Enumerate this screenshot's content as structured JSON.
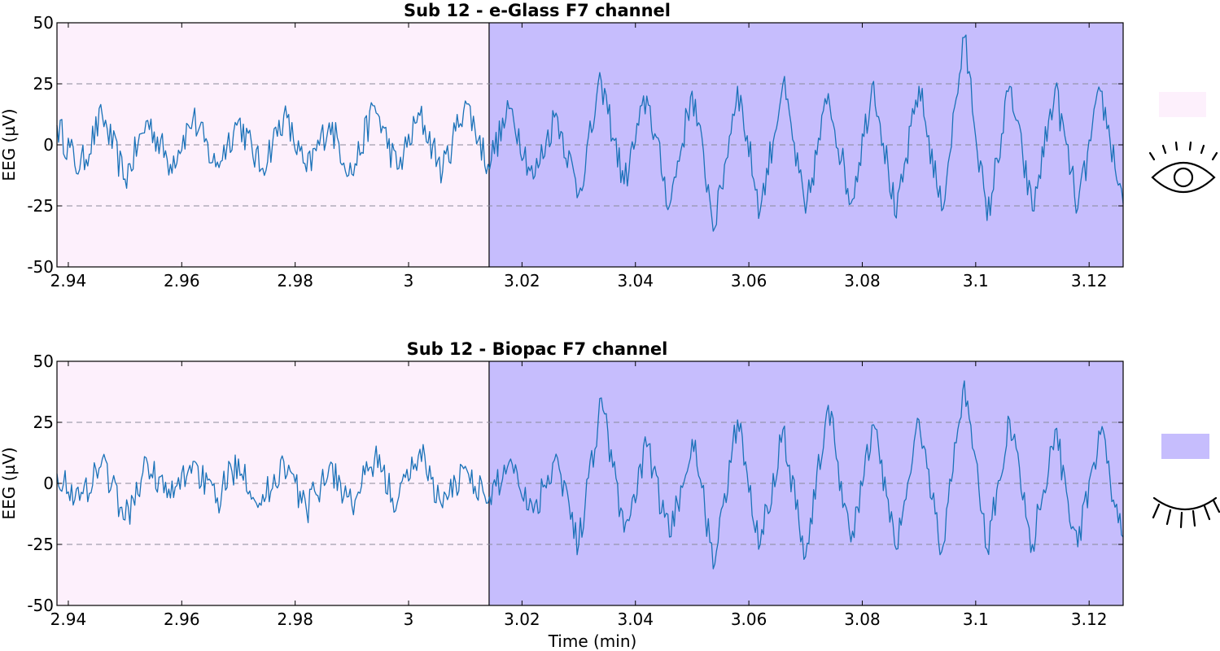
{
  "chart_data": [
    {
      "type": "line",
      "title": "Sub 12 - e-Glass F7 channel",
      "ylabel": "EEG (µV)",
      "xlabel": "",
      "xlim": [
        2.938,
        3.126
      ],
      "ylim": [
        -50,
        50
      ],
      "x_ticks": [
        2.94,
        2.96,
        2.98,
        3,
        3.02,
        3.04,
        3.06,
        3.08,
        3.1,
        3.12
      ],
      "x_tick_labels": [
        "2.94",
        "2.96",
        "2.98",
        "3",
        "3.02",
        "3.04",
        "3.06",
        "3.08",
        "3.1",
        "3.12"
      ],
      "y_ticks": [
        -50,
        -25,
        0,
        25,
        50
      ],
      "y_tick_labels": [
        "-50",
        "-25",
        "0",
        "25",
        "50"
      ],
      "grid": "horizontal dashed at -25, 0, 25",
      "regions": [
        {
          "state": "eyes-open",
          "x_range": [
            2.938,
            3.0142
          ],
          "color": "#fdf0fc"
        },
        {
          "state": "eyes-closed",
          "x_range": [
            3.0142,
            3.126
          ],
          "color": "#c6bdfd"
        }
      ],
      "series": [
        {
          "color": "#1a72b8",
          "x": [
            2.938,
            2.942,
            2.946,
            2.95,
            2.954,
            2.958,
            2.962,
            2.966,
            2.97,
            2.974,
            2.978,
            2.982,
            2.986,
            2.99,
            2.994,
            2.998,
            3.002,
            3.006,
            3.01,
            3.014,
            3.018,
            3.022,
            3.026,
            3.03,
            3.034,
            3.038,
            3.042,
            3.046,
            3.05,
            3.054,
            3.058,
            3.062,
            3.066,
            3.07,
            3.074,
            3.078,
            3.082,
            3.086,
            3.09,
            3.094,
            3.098,
            3.102,
            3.106,
            3.11,
            3.114,
            3.118,
            3.122,
            3.126
          ],
          "y": [
            8,
            -10,
            12,
            -14,
            10,
            -8,
            11,
            -9,
            10,
            -10,
            12,
            -11,
            9,
            -12,
            16,
            -10,
            12,
            -11,
            18,
            -8,
            15,
            -14,
            13,
            -20,
            26,
            -16,
            20,
            -25,
            22,
            -34,
            24,
            -27,
            25,
            -28,
            21,
            -24,
            26,
            -30,
            24,
            -27,
            44,
            -31,
            24,
            -27,
            23,
            -26,
            22,
            -24
          ]
        }
      ]
    },
    {
      "type": "line",
      "title": "Sub 12 - Biopac F7 channel",
      "ylabel": "EEG (µV)",
      "xlabel": "Time (min)",
      "xlim": [
        2.938,
        3.126
      ],
      "ylim": [
        -50,
        50
      ],
      "x_ticks": [
        2.94,
        2.96,
        2.98,
        3,
        3.02,
        3.04,
        3.06,
        3.08,
        3.1,
        3.12
      ],
      "x_tick_labels": [
        "2.94",
        "2.96",
        "2.98",
        "3",
        "3.02",
        "3.04",
        "3.06",
        "3.08",
        "3.1",
        "3.12"
      ],
      "y_ticks": [
        -50,
        -25,
        0,
        25,
        50
      ],
      "y_tick_labels": [
        "-50",
        "-25",
        "0",
        "25",
        "50"
      ],
      "grid": "horizontal dashed at -25, 0, 25",
      "regions": [
        {
          "state": "eyes-open",
          "x_range": [
            2.938,
            3.0142
          ],
          "color": "#fdf0fc"
        },
        {
          "state": "eyes-closed",
          "x_range": [
            3.0142,
            3.126
          ],
          "color": "#c6bdfd"
        }
      ],
      "series": [
        {
          "color": "#1a72b8",
          "x": [
            2.938,
            2.942,
            2.946,
            2.95,
            2.954,
            2.958,
            2.962,
            2.966,
            2.97,
            2.974,
            2.978,
            2.982,
            2.986,
            2.99,
            2.994,
            2.998,
            3.002,
            3.006,
            3.01,
            3.014,
            3.018,
            3.022,
            3.026,
            3.03,
            3.034,
            3.038,
            3.042,
            3.046,
            3.05,
            3.054,
            3.058,
            3.062,
            3.066,
            3.07,
            3.074,
            3.078,
            3.082,
            3.086,
            3.09,
            3.094,
            3.098,
            3.102,
            3.106,
            3.11,
            3.114,
            3.118,
            3.122,
            3.126
          ],
          "y": [
            4,
            -7,
            10,
            -15,
            8,
            -6,
            9,
            -8,
            10,
            -9,
            9,
            -11,
            7,
            -9,
            10,
            -8,
            14,
            -10,
            7,
            -8,
            10,
            -12,
            12,
            -25,
            35,
            -20,
            15,
            -22,
            18,
            -33,
            26,
            -25,
            22,
            -30,
            32,
            -24,
            24,
            -27,
            26,
            -28,
            42,
            -27,
            26,
            -25,
            22,
            -26,
            20,
            -22
          ]
        }
      ]
    }
  ],
  "legend": {
    "eyes_open_color": "#fdf0fc",
    "eyes_closed_color": "#c6bdfd",
    "icons": [
      "open-eye-icon",
      "closed-eye-icon"
    ]
  }
}
